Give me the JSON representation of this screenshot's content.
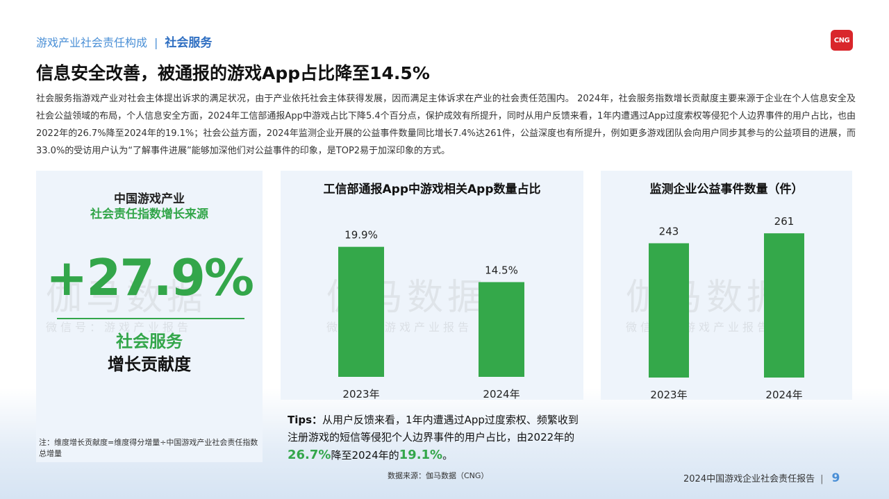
{
  "header": {
    "breadcrumb_section": "游戏产业社会责任构成",
    "breadcrumb_current": "社会服务",
    "logo_text": "CNG"
  },
  "page_title": "信息安全改善，被通报的游戏App占比降至14.5%",
  "intro": "社会服务指游戏产业对社会主体提出诉求的满足状况，由于产业依托社会主体获得发展，因而满足主体诉求在产业的社会责任范围内。 2024年，社会服务指数增长贡献度主要来源于企业在个人信息安全及社会公益领域的布局，个人信息安全方面，2024年工信部通报App中游戏占比下降5.4个百分点，保护成效有所提升，同时从用户反馈来看，1年内遭遇过App过度索权等侵犯个人边界事件的用户占比，也由2022年的26.7%降至2024年的19.1%；社会公益方面，2024年监测企业开展的公益事件数量同比增长7.4%达261件，公益深度也有所提升，例如更多游戏团队会向用户同步其参与的公益项目的进展，而33.0%的受访用户认为“了解事件进展”能够加深他们对公益事件的印象，是TOP2易于加深印象的方式。",
  "left_panel": {
    "heading_line1": "中国游戏产业",
    "heading_line2": "社会责任指数增长来源",
    "big_number": "+27.9%",
    "dimension_name": "社会服务",
    "dimension_sub": "增长贡献度",
    "note": "注：维度增长贡献度=维度得分增量÷中国游戏产业社会责任指数总增量"
  },
  "watermark": {
    "main": "伽马数据",
    "sub": "微信号：游戏产业报告"
  },
  "tips": {
    "label": "Tips：",
    "text_part1": "从用户反馈来看，1年内遭遇过App过度索权、频繁收到注册游戏的短信等侵犯个人边界事件的用户占比，由2022年的",
    "highlight1": "26.7%",
    "text_part2": "降至2024年的",
    "highlight2": "19.1%",
    "text_part3": "。"
  },
  "source": "数据来源：伽马数据（CNG）",
  "footer": {
    "report_title": "2024中国游戏企业社会责任报告",
    "page_number": "9"
  },
  "colors": {
    "bar": "#34a84a",
    "accent_green": "#33a64a",
    "accent_blue": "#4a8fd6",
    "panel_bg": "#eef4fb"
  },
  "chart_data": [
    {
      "type": "bar",
      "title": "工信部通报App中游戏相关App数量占比",
      "categories": [
        "2023年",
        "2024年"
      ],
      "values": [
        19.9,
        14.5
      ],
      "value_labels": [
        "19.9%",
        "14.5%"
      ],
      "ylim": [
        0,
        20.5
      ]
    },
    {
      "type": "bar",
      "title": "监测企业公益事件数量（件）",
      "categories": [
        "2023年",
        "2024年"
      ],
      "values": [
        243,
        261
      ],
      "value_labels": [
        "243",
        "261"
      ],
      "ylim": [
        0,
        270
      ]
    }
  ]
}
